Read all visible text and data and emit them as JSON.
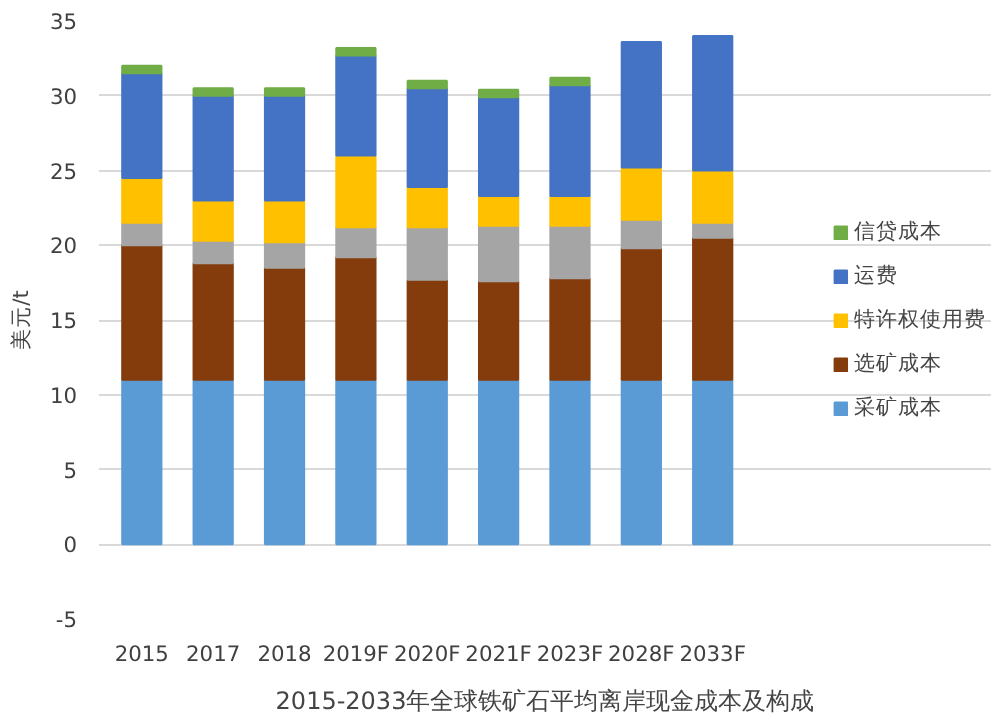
{
  "chart_data": {
    "type": "bar",
    "stacked": true,
    "title": "2015-2033年全球铁矿石平均离岸现金成本及构成",
    "ylabel": "美元/t",
    "categories": [
      "2015",
      "2017",
      "2018",
      "2019F",
      "2020F",
      "2021F",
      "2023F",
      "2028F",
      "2033F"
    ],
    "series": [
      {
        "name": "采矿成本",
        "color": "#5b9bd5",
        "values": [
          11,
          11,
          11,
          11,
          11,
          11,
          11,
          11,
          11
        ]
      },
      {
        "name": "选矿成本",
        "color": "#843c0c",
        "values": [
          9,
          7.8,
          7.5,
          8.2,
          6.7,
          6.6,
          6.8,
          8.8,
          9.5
        ]
      },
      {
        "color": "#a5a5a5",
        "values": [
          1.5,
          1.5,
          1.7,
          2,
          3.5,
          3.7,
          3.5,
          1.9,
          1
        ]
      },
      {
        "name": "特许权使用费",
        "color": "#ffc000",
        "values": [
          3,
          2.7,
          2.8,
          4.8,
          2.7,
          2,
          2,
          3.5,
          3.5
        ]
      },
      {
        "name": "运费",
        "color": "#4472c4",
        "values": [
          7,
          7,
          7,
          6.7,
          6.6,
          6.6,
          7.4,
          8.4,
          9
        ]
      },
      {
        "name": "信贷成本",
        "color": "#70ad47",
        "values": [
          0.5,
          0.5,
          0.5,
          0.5,
          0.5,
          0.5,
          0.5,
          null,
          null
        ]
      }
    ],
    "ylim": [
      -5,
      35
    ],
    "yticks": [
      -5,
      0,
      5,
      10,
      15,
      20,
      25,
      30,
      35
    ],
    "grid": "y",
    "legend": "right"
  }
}
